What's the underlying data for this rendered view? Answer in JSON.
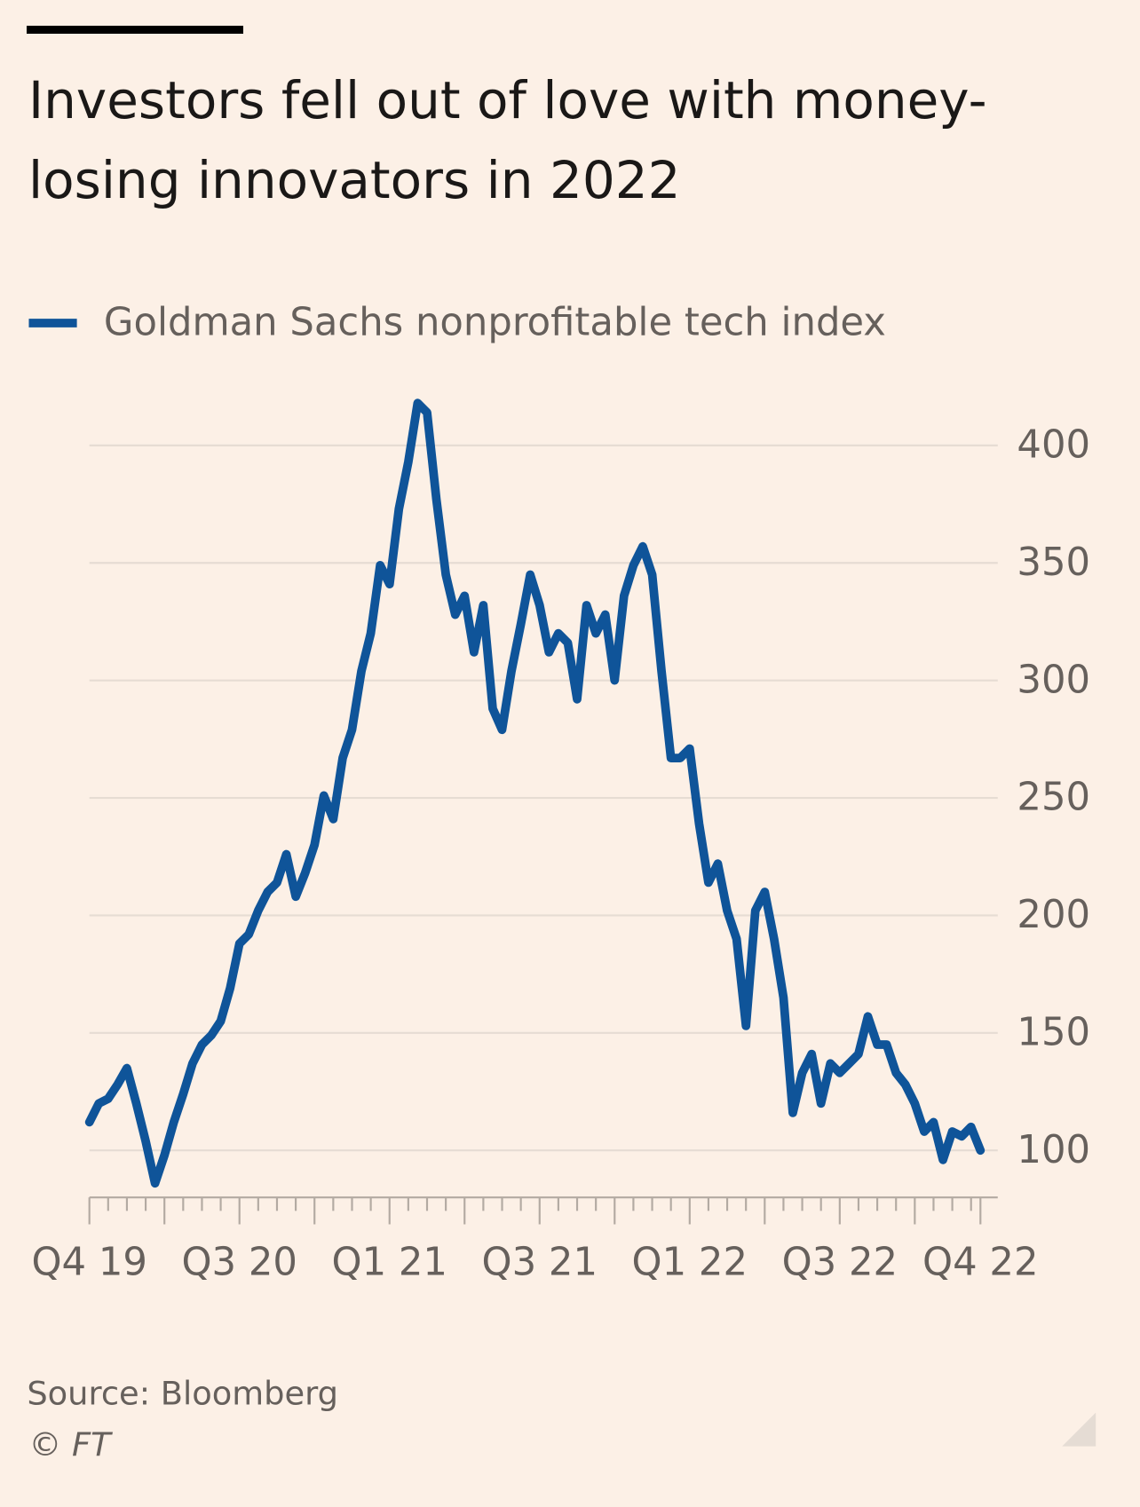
{
  "chart_data": {
    "type": "line",
    "title": "Investors fell out of love with money-losing innovators in 2022",
    "categories": [
      "Q4 19",
      null,
      null,
      null,
      null,
      null,
      null,
      null,
      null,
      null,
      null,
      null,
      null,
      null,
      null,
      null,
      "Q3 20",
      null,
      null,
      null,
      null,
      null,
      null,
      null,
      null,
      null,
      null,
      null,
      null,
      null,
      null,
      null,
      "Q1 21",
      null,
      null,
      null,
      null,
      null,
      null,
      null,
      null,
      null,
      null,
      null,
      null,
      null,
      null,
      null,
      "Q3 21",
      null,
      null,
      null,
      null,
      null,
      null,
      null,
      null,
      null,
      null,
      null,
      null,
      null,
      null,
      null,
      "Q1 22",
      null,
      null,
      null,
      null,
      null,
      null,
      null,
      null,
      null,
      null,
      null,
      null,
      null,
      null,
      null,
      "Q3 22",
      null,
      null,
      null,
      null,
      null,
      null,
      null,
      null,
      null,
      null,
      null,
      null,
      null,
      null,
      "Q4 22"
    ],
    "series": [
      {
        "name": "Goldman Sachs nonprofitable tech index",
        "color": "#0f5499",
        "values": [
          112,
          120,
          122,
          128,
          135,
          120,
          104,
          86,
          98,
          112,
          124,
          137,
          145,
          149,
          155,
          169,
          188,
          192,
          202,
          210,
          214,
          226,
          208,
          218,
          230,
          251,
          241,
          267,
          279,
          304,
          320,
          349,
          341,
          373,
          393,
          418,
          414,
          377,
          345,
          328,
          336,
          312,
          332,
          288,
          279,
          304,
          324,
          345,
          332,
          312,
          320,
          316,
          292,
          332,
          320,
          328,
          300,
          336,
          349,
          357,
          345,
          304,
          267,
          267,
          271,
          239,
          214,
          222,
          202,
          190,
          153,
          202,
          210,
          190,
          165,
          116,
          133,
          141,
          120,
          137,
          133,
          137,
          141,
          157,
          145,
          145,
          133,
          128,
          120,
          108,
          112,
          96,
          108,
          106,
          110,
          100
        ]
      }
    ],
    "ylim": [
      80,
      430
    ],
    "yticks": [
      100,
      150,
      200,
      250,
      300,
      350,
      400
    ],
    "grid": true,
    "source": "Source: Bloomberg",
    "credit": "© FT"
  }
}
